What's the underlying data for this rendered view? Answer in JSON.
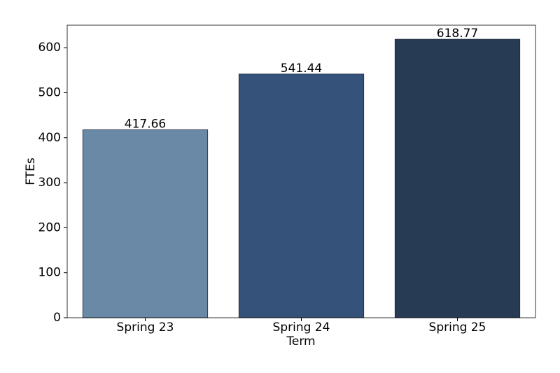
{
  "chart_data": {
    "type": "bar",
    "x_label": "Term",
    "y_label": "FTEs",
    "categories": [
      "Spring 23",
      "Spring 24",
      "Spring 25"
    ],
    "values": [
      417.66,
      541.44,
      618.77
    ],
    "colors": [
      "#6a89a7",
      "#34527a",
      "#283b54"
    ],
    "ylim": [
      0,
      650
    ],
    "yticks": [
      0,
      100,
      200,
      300,
      400,
      500,
      600
    ],
    "grid": false
  }
}
